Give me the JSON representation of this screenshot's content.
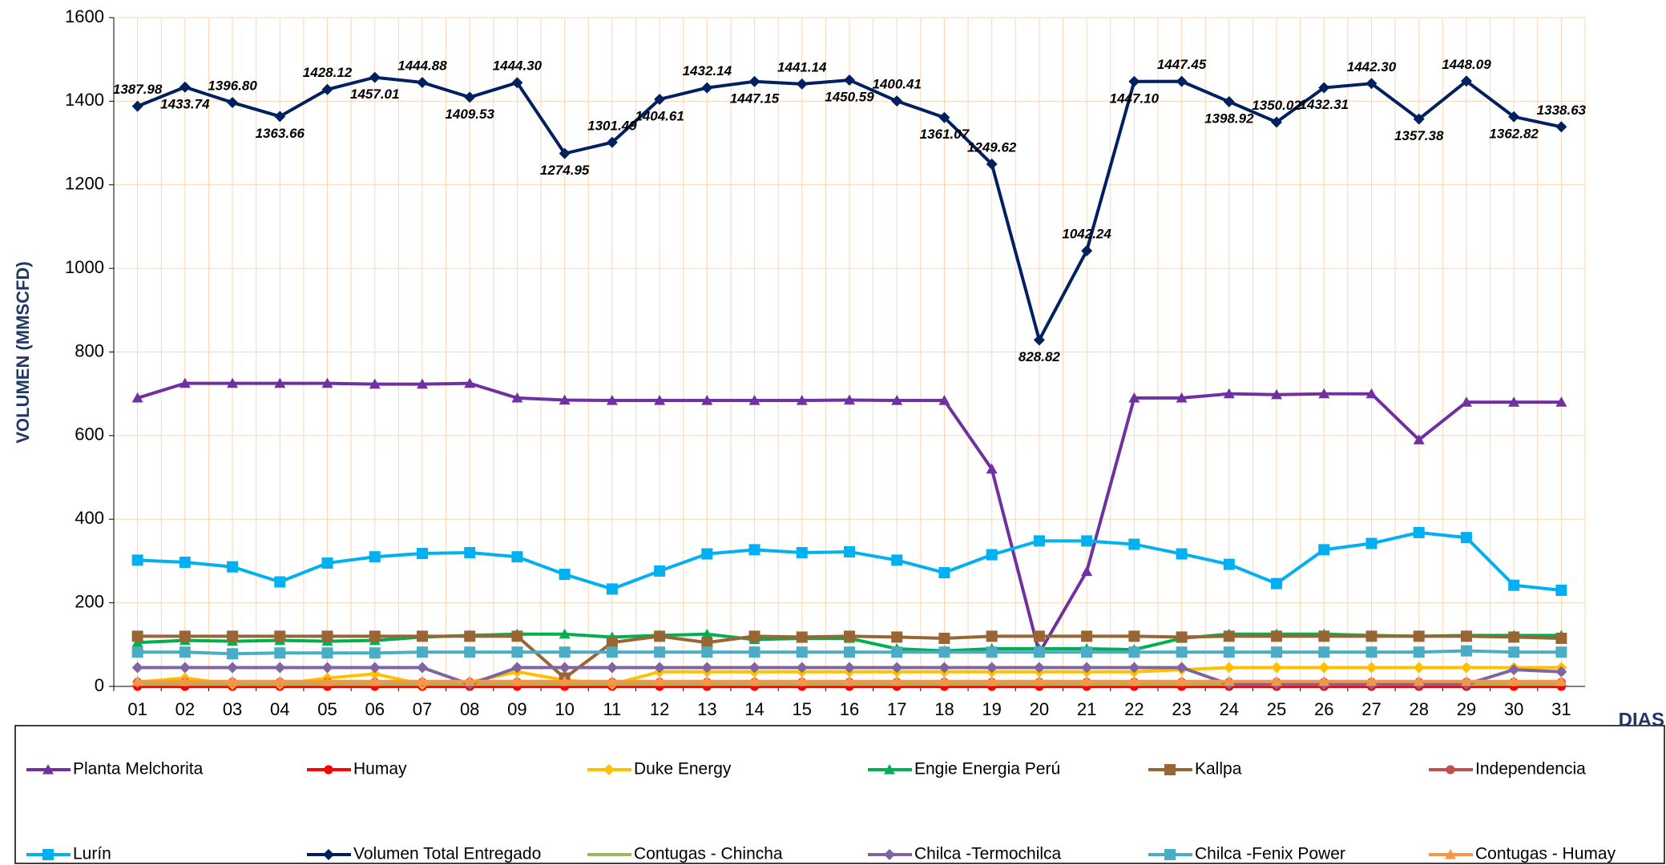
{
  "chart_data": {
    "type": "line",
    "y_label": "VOLUMEN (MMSCFD)",
    "x_label": "DIAS",
    "categories": [
      "01",
      "02",
      "03",
      "04",
      "05",
      "06",
      "07",
      "08",
      "09",
      "10",
      "11",
      "12",
      "13",
      "14",
      "15",
      "16",
      "17",
      "18",
      "19",
      "20",
      "21",
      "22",
      "23",
      "24",
      "25",
      "26",
      "27",
      "28",
      "29",
      "30",
      "31"
    ],
    "ylim": [
      0,
      1600
    ],
    "yticks": [
      0,
      200,
      400,
      600,
      800,
      1000,
      1200,
      1400,
      1600
    ],
    "grid": true,
    "series": [
      {
        "name": "Planta Melchorita",
        "color": "#7030a0",
        "marker": "triangle",
        "values": [
          690,
          725,
          725,
          725,
          725,
          723,
          723,
          725,
          690,
          685,
          684,
          684,
          684,
          684,
          684,
          685,
          684,
          684,
          520,
          80,
          275,
          690,
          690,
          700,
          698,
          700,
          700,
          590,
          680,
          680,
          680
        ]
      },
      {
        "name": "Humay",
        "color": "#ff0000",
        "marker": "circle",
        "values": [
          0,
          0,
          0,
          0,
          0,
          0,
          0,
          0,
          0,
          0,
          0,
          0,
          0,
          0,
          0,
          0,
          0,
          0,
          0,
          0,
          0,
          0,
          0,
          0,
          0,
          0,
          0,
          0,
          0,
          0,
          0
        ]
      },
      {
        "name": "Duke Energy",
        "color": "#ffc000",
        "marker": "diamond",
        "values": [
          10,
          20,
          5,
          5,
          20,
          30,
          5,
          10,
          35,
          15,
          5,
          35,
          35,
          35,
          35,
          35,
          35,
          35,
          35,
          35,
          35,
          35,
          40,
          45,
          45,
          45,
          45,
          45,
          45,
          45,
          45
        ]
      },
      {
        "name": "Engie Energia Perú",
        "color": "#00b050",
        "marker": "triangle",
        "values": [
          105,
          110,
          108,
          110,
          108,
          110,
          118,
          122,
          125,
          125,
          118,
          122,
          125,
          112,
          115,
          115,
          90,
          85,
          90,
          90,
          90,
          88,
          115,
          125,
          125,
          125,
          122,
          120,
          122,
          122,
          122
        ]
      },
      {
        "name": "Kallpa",
        "color": "#996633",
        "marker": "square",
        "values": [
          120,
          120,
          120,
          120,
          120,
          120,
          120,
          120,
          120,
          20,
          105,
          120,
          105,
          120,
          118,
          120,
          118,
          115,
          120,
          120,
          120,
          120,
          118,
          120,
          120,
          120,
          120,
          120,
          120,
          118,
          115
        ]
      },
      {
        "name": "Independencia",
        "color": "#c0504d",
        "marker": "circle",
        "values": [
          10,
          10,
          10,
          10,
          10,
          10,
          10,
          10,
          10,
          10,
          10,
          10,
          10,
          10,
          10,
          10,
          10,
          10,
          10,
          10,
          10,
          10,
          10,
          10,
          10,
          10,
          10,
          10,
          10,
          10,
          10
        ]
      },
      {
        "name": "Lurín",
        "color": "#00b0f0",
        "marker": "square",
        "values": [
          302,
          297,
          286,
          250,
          295,
          310,
          318,
          320,
          310,
          268,
          233,
          276,
          317,
          327,
          320,
          322,
          302,
          272,
          315,
          348,
          348,
          340,
          317,
          292,
          246,
          327,
          342,
          368,
          356,
          242,
          230
        ]
      },
      {
        "name": "Volumen Total Entregado",
        "color": "#002060",
        "marker": "diamond",
        "values": [
          1387.98,
          1433.74,
          1396.8,
          1363.66,
          1428.12,
          1457.01,
          1444.88,
          1409.53,
          1444.3,
          1274.95,
          1301.49,
          1404.61,
          1432.14,
          1447.15,
          1441.14,
          1450.59,
          1400.41,
          1361.07,
          1249.62,
          828.82,
          1042.24,
          1447.1,
          1447.45,
          1398.92,
          1350.02,
          1432.31,
          1442.3,
          1357.38,
          1448.09,
          1362.82,
          1338.63
        ],
        "value_labels": [
          "1387.98",
          "1433.74",
          "1396.80",
          "1363.66",
          "1428.12",
          "1457.01",
          "1444.88",
          "1409.53",
          "1444.30",
          "1274.95",
          "1301.49",
          "1404.61",
          "1432.14",
          "1447.15",
          "1441.14",
          "1450.59",
          "1400.41",
          "1361.07",
          "1249.62",
          "828.82",
          "1042.24",
          "1447.10",
          "1447.45",
          "1398.92",
          "1350.02",
          "1432.31",
          "1442.30",
          "1357.38",
          "1448.09",
          "1362.82",
          "1338.63"
        ]
      },
      {
        "name": "Contugas - Chincha",
        "color": "#9bbb59",
        "marker": "none",
        "values": [
          5,
          5,
          5,
          5,
          5,
          5,
          5,
          5,
          5,
          5,
          5,
          5,
          5,
          5,
          5,
          5,
          5,
          5,
          5,
          5,
          5,
          5,
          5,
          5,
          5,
          5,
          5,
          5,
          5,
          5,
          5
        ]
      },
      {
        "name": "Chilca -Termochilca",
        "color": "#8064a2",
        "marker": "diamond",
        "values": [
          45,
          45,
          45,
          45,
          45,
          45,
          45,
          5,
          45,
          45,
          45,
          45,
          45,
          45,
          45,
          45,
          45,
          45,
          45,
          45,
          45,
          45,
          45,
          5,
          5,
          5,
          5,
          5,
          5,
          40,
          35
        ]
      },
      {
        "name": "Chilca -Fenix Power",
        "color": "#4bacc6",
        "marker": "square",
        "values": [
          82,
          82,
          78,
          80,
          80,
          80,
          82,
          82,
          82,
          82,
          82,
          82,
          82,
          82,
          82,
          82,
          82,
          82,
          82,
          82,
          82,
          82,
          82,
          82,
          82,
          82,
          82,
          82,
          85,
          82,
          82
        ]
      },
      {
        "name": "Contugas - Humay",
        "color": "#f79646",
        "marker": "triangle",
        "values": [
          12,
          12,
          12,
          12,
          12,
          12,
          12,
          12,
          12,
          12,
          12,
          12,
          12,
          12,
          12,
          12,
          12,
          12,
          12,
          12,
          12,
          12,
          12,
          12,
          12,
          12,
          12,
          12,
          12,
          12,
          12
        ]
      }
    ]
  }
}
